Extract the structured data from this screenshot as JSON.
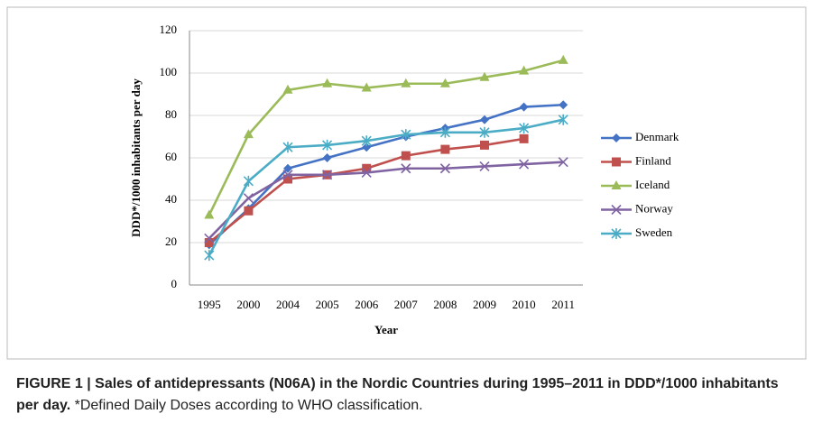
{
  "chart_data": {
    "type": "line",
    "categories": [
      "1995",
      "2000",
      "2004",
      "2005",
      "2006",
      "2007",
      "2008",
      "2009",
      "2010",
      "2011"
    ],
    "series": [
      {
        "name": "Denmark",
        "color": "#4472c4",
        "marker": "diamond",
        "values": [
          19,
          36,
          55,
          60,
          65,
          70,
          74,
          78,
          84,
          85
        ]
      },
      {
        "name": "Finland",
        "color": "#c0504d",
        "marker": "square",
        "values": [
          20,
          35,
          50,
          52,
          55,
          61,
          64,
          66,
          69,
          null
        ]
      },
      {
        "name": "Iceland",
        "color": "#9bbb59",
        "marker": "triangle",
        "values": [
          33,
          71,
          92,
          95,
          93,
          95,
          95,
          98,
          101,
          106
        ]
      },
      {
        "name": "Norway",
        "color": "#8064a2",
        "marker": "x",
        "values": [
          22,
          41,
          52,
          52,
          53,
          55,
          55,
          56,
          57,
          58
        ]
      },
      {
        "name": "Sweden",
        "color": "#4bacc6",
        "marker": "star",
        "values": [
          14,
          49,
          65,
          66,
          68,
          71,
          72,
          72,
          74,
          78
        ]
      }
    ],
    "xlabel": "Year",
    "ylabel": "DDD*/1000 inhabitants per day",
    "ylim": [
      0,
      120
    ],
    "yticks": [
      0,
      20,
      40,
      60,
      80,
      100,
      120
    ],
    "grid": true,
    "legend": "right"
  },
  "caption": {
    "title": "FIGURE 1 | Sales of antidepressants (N06A) in the Nordic Countries during 1995–2011 in DDD*/1000 inhabitants per day.",
    "text": "*Defined Daily Doses according to WHO classification."
  }
}
